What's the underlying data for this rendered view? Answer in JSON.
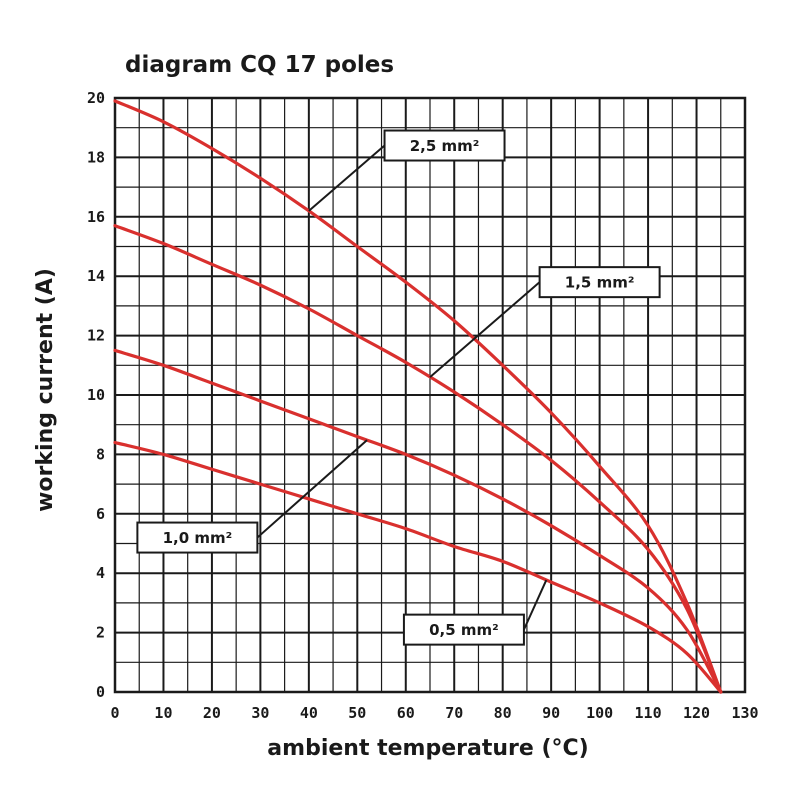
{
  "chart_data": {
    "type": "line",
    "title": "diagram CQ 17 poles",
    "xlabel": "ambient temperature (°C)",
    "ylabel": "working current (A)",
    "xlim": [
      0,
      130
    ],
    "ylim": [
      0,
      20
    ],
    "x_ticks": [
      "0",
      "10",
      "20",
      "30",
      "40",
      "50",
      "60",
      "70",
      "80",
      "90",
      "100",
      "110",
      "120",
      "130"
    ],
    "y_ticks": [
      "0",
      "2",
      "4",
      "6",
      "8",
      "10",
      "12",
      "14",
      "16",
      "18",
      "20"
    ],
    "grid": true,
    "line_color": "#d9302e",
    "grid_color": "#1a1a1a",
    "series": [
      {
        "name": "2,5 mm²",
        "x": [
          0,
          10,
          20,
          30,
          40,
          50,
          60,
          70,
          80,
          90,
          100,
          110,
          118,
          125
        ],
        "y": [
          19.9,
          19.2,
          18.3,
          17.3,
          16.2,
          15.0,
          13.8,
          12.5,
          11.0,
          9.4,
          7.6,
          5.6,
          3.0,
          0.0
        ]
      },
      {
        "name": "1,5 mm²",
        "x": [
          0,
          10,
          20,
          30,
          40,
          50,
          60,
          70,
          80,
          90,
          100,
          110,
          118,
          125
        ],
        "y": [
          15.7,
          15.1,
          14.4,
          13.7,
          12.9,
          12.0,
          11.1,
          10.1,
          9.0,
          7.8,
          6.4,
          4.8,
          2.8,
          0.0
        ]
      },
      {
        "name": "1,0 mm²",
        "x": [
          0,
          10,
          20,
          30,
          40,
          50,
          60,
          70,
          80,
          90,
          100,
          110,
          118,
          125
        ],
        "y": [
          11.5,
          11.0,
          10.4,
          9.8,
          9.2,
          8.6,
          8.0,
          7.3,
          6.5,
          5.6,
          4.6,
          3.5,
          2.1,
          0.0
        ]
      },
      {
        "name": "0,5 mm²",
        "x": [
          0,
          10,
          20,
          30,
          40,
          50,
          60,
          70,
          80,
          90,
          100,
          110,
          118,
          125
        ],
        "y": [
          8.4,
          8.0,
          7.5,
          7.0,
          6.5,
          6.0,
          5.5,
          4.9,
          4.4,
          3.7,
          3.0,
          2.2,
          1.3,
          0.0
        ]
      }
    ],
    "annotations": [
      {
        "text": "2,5 mm²",
        "series": 0,
        "point_x": 40,
        "box_x": 68,
        "box_y": 18.4
      },
      {
        "text": "1,5 mm²",
        "series": 1,
        "point_x": 65,
        "box_x": 100,
        "box_y": 13.8
      },
      {
        "text": "1,0 mm²",
        "series": 2,
        "point_x": 52,
        "box_x": 17,
        "box_y": 5.2
      },
      {
        "text": "0,5 mm²",
        "series": 3,
        "point_x": 89,
        "box_x": 72,
        "box_y": 2.1
      }
    ]
  }
}
